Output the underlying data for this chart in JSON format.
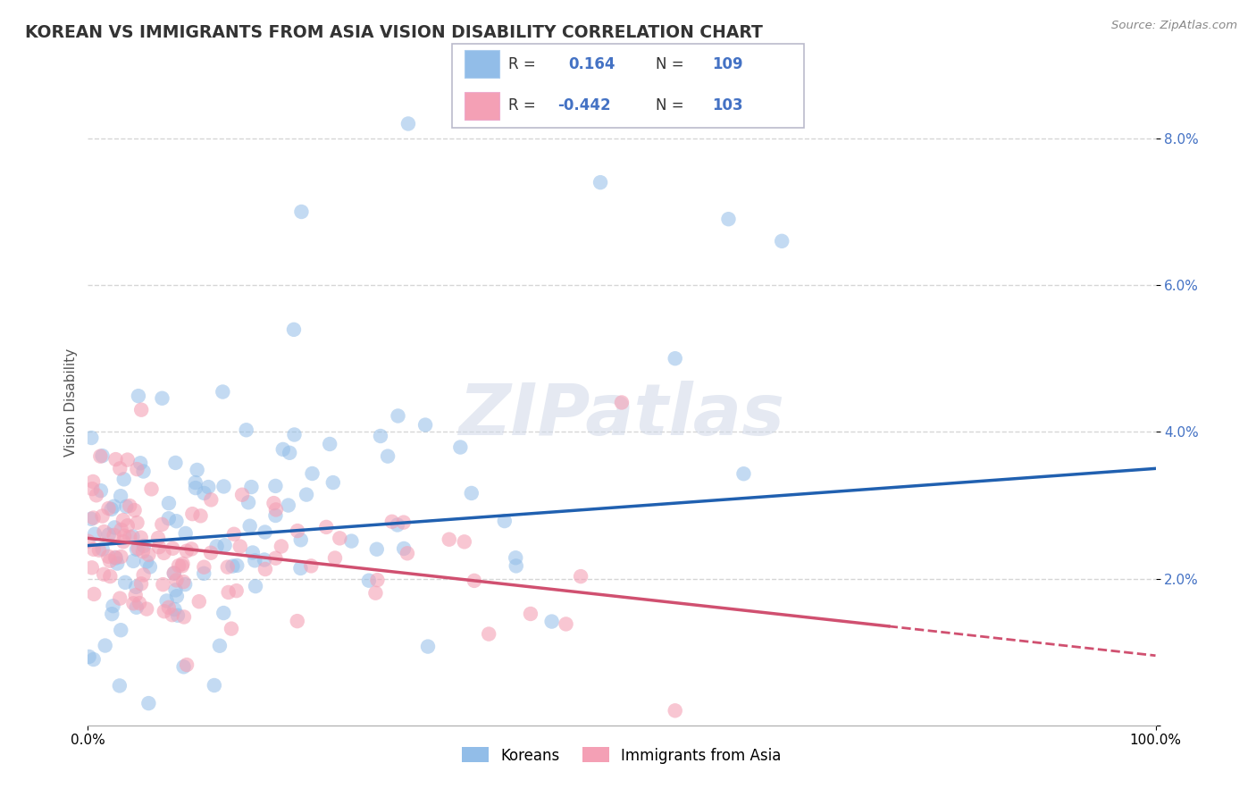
{
  "title": "KOREAN VS IMMIGRANTS FROM ASIA VISION DISABILITY CORRELATION CHART",
  "source": "Source: ZipAtlas.com",
  "ylabel": "Vision Disability",
  "xlim": [
    0,
    100
  ],
  "ylim": [
    0,
    8.8
  ],
  "yticks": [
    0,
    2,
    4,
    6,
    8
  ],
  "ytick_labels": [
    "",
    "2.0%",
    "4.0%",
    "6.0%",
    "8.0%"
  ],
  "xtick_labels": [
    "0.0%",
    "100.0%"
  ],
  "korean_color": "#92BDE8",
  "immigrant_color": "#F4A0B5",
  "trend_korean_color": "#2060B0",
  "trend_immigrant_color": "#D05070",
  "background_color": "#FFFFFF",
  "grid_color": "#CCCCCC",
  "title_fontsize": 13.5,
  "label_fontsize": 11,
  "tick_fontsize": 11,
  "korean_R": 0.164,
  "korean_N": 109,
  "immigrant_R": -0.442,
  "immigrant_N": 103,
  "korean_trend_x0": 0,
  "korean_trend_y0": 2.45,
  "korean_trend_x1": 100,
  "korean_trend_y1": 3.5,
  "immigrant_trend_x0": 0,
  "immigrant_trend_y0": 2.55,
  "immigrant_trend_x1": 75,
  "immigrant_trend_y1": 1.35,
  "immigrant_dash_x0": 75,
  "immigrant_dash_x1": 100
}
